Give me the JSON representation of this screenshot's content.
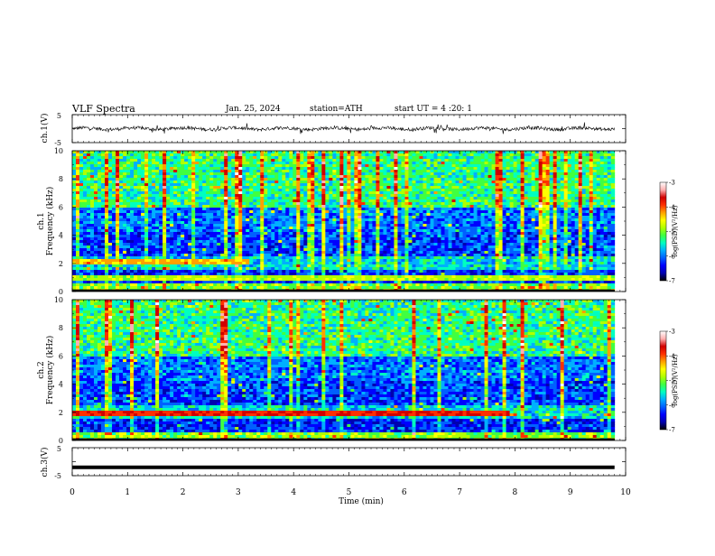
{
  "header": {
    "title": "VLF  Spectra",
    "date": "Jan. 25, 2024",
    "station": "station=ATH",
    "start_ut": "start  UT  =   4  :20: 1"
  },
  "colors": {
    "colorbar": [
      "#000000",
      "#0000b0",
      "#0000ff",
      "#0060ff",
      "#00b0ff",
      "#00ffc0",
      "#40ff40",
      "#b0ff00",
      "#ffff00",
      "#ffa000",
      "#ff3000",
      "#d00000",
      "#ffb0b0",
      "#ffffff"
    ],
    "waveform": "#000000"
  },
  "chart_data": [
    {
      "id": "ch1-waveform",
      "type": "line",
      "ylabel": "ch.1(V)",
      "ylim": [
        -5,
        5
      ],
      "y_ticks": [
        "5",
        "-5"
      ],
      "xlim": [
        0,
        10
      ],
      "description_series": "noisy signal around 0 V",
      "baseline": 0,
      "amplitude": 1
    },
    {
      "id": "ch1-spectrogram",
      "type": "heatmap",
      "ylabel_line1": "ch.1",
      "ylabel_line2": "Frequency (kHz)",
      "ylim": [
        0,
        10
      ],
      "y_ticks": [
        "0",
        "2",
        "4",
        "6",
        "8",
        "10"
      ],
      "xlim": [
        0,
        10
      ],
      "colorbar": {
        "label": "log(PSD)(V²/Hz)",
        "range": [
          -7,
          -3
        ],
        "ticks": [
          "-3",
          "-4",
          "-5",
          "-6",
          "-7"
        ]
      },
      "bands": [
        {
          "freq_khz": 2.1,
          "level": -4.3,
          "x_end": 3.2
        },
        {
          "freq_khz": 1.0,
          "level": -4.8,
          "x_end": 9.8
        }
      ]
    },
    {
      "id": "ch2-spectrogram",
      "type": "heatmap",
      "ylabel_line1": "ch.2",
      "ylabel_line2": "Frequency (kHz)",
      "ylim": [
        0,
        10
      ],
      "y_ticks": [
        "0",
        "2",
        "4",
        "6",
        "8",
        "10"
      ],
      "xlim": [
        0,
        10
      ],
      "colorbar": {
        "label": "log(PSD)(V²/Hz)",
        "range": [
          -7,
          -3
        ],
        "ticks": [
          "-3",
          "-4",
          "-5",
          "-6",
          "-7"
        ]
      },
      "bands": [
        {
          "freq_khz": 2.0,
          "level": -3.8,
          "x_end": 7.9
        }
      ]
    },
    {
      "id": "ch3-waveform",
      "type": "line",
      "ylabel": "ch.3(V)",
      "ylim": [
        -5,
        5
      ],
      "y_ticks": [
        "5",
        "-5"
      ],
      "xlim": [
        0,
        10
      ],
      "baseline": -2,
      "amplitude": 0
    }
  ],
  "x_axis": {
    "label": "Time  (min)",
    "ticks": [
      "0",
      "1",
      "2",
      "3",
      "4",
      "5",
      "6",
      "7",
      "8",
      "9",
      "10"
    ]
  }
}
